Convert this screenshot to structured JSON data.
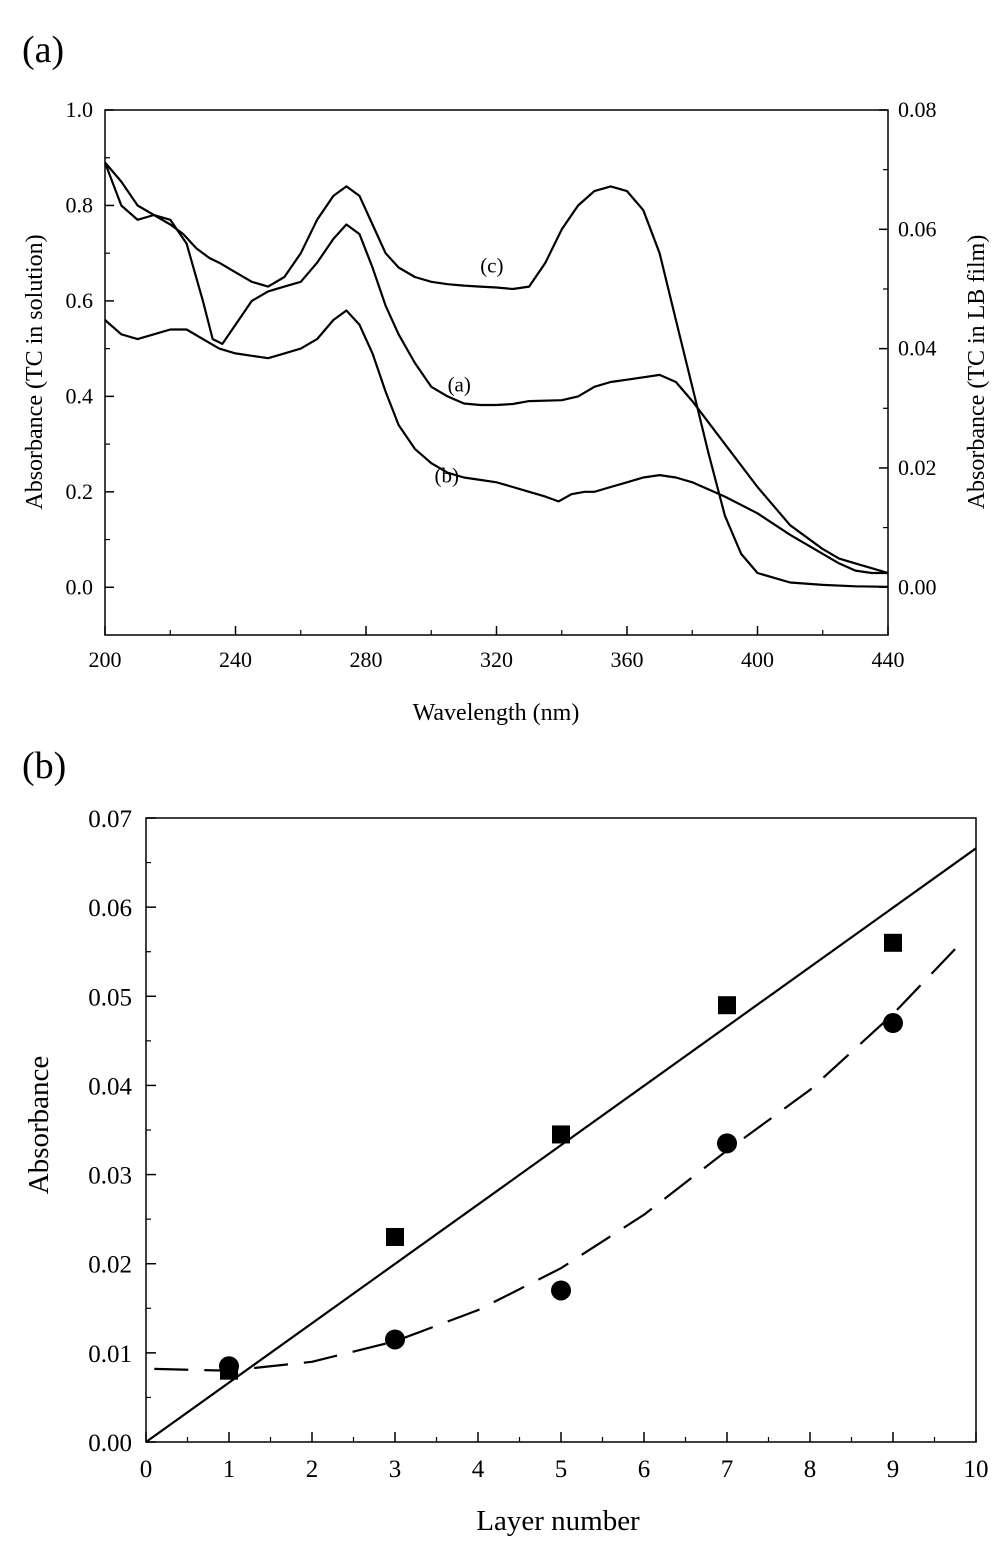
{
  "chart_data": [
    {
      "type": "line",
      "panel_label": "(a)",
      "xlabel": "Wavelength (nm)",
      "ylabel": "Absorbance (TC in solution)",
      "y2label": "Absorbance (TC in LB film)",
      "xlim": [
        200,
        440
      ],
      "ylim": [
        -0.1,
        1.0
      ],
      "y2lim": [
        -0.008,
        0.08
      ],
      "xticks": [
        "200",
        "240",
        "280",
        "320",
        "360",
        "400",
        "440"
      ],
      "yticks": [
        "0.0",
        "0.2",
        "0.4",
        "0.6",
        "0.8",
        "1.0"
      ],
      "y2ticks": [
        "0.00",
        "0.02",
        "0.04",
        "0.06",
        "0.08"
      ],
      "grid": false,
      "series": [
        {
          "name": "(a)",
          "label_pos": [
            305,
            0.41
          ],
          "x": [
            200,
            205,
            210,
            215,
            220,
            225,
            230,
            233,
            236,
            240,
            245,
            250,
            255,
            260,
            265,
            270,
            274,
            278,
            282,
            286,
            290,
            295,
            300,
            305,
            310,
            315,
            320,
            325,
            330,
            340,
            345,
            350,
            355,
            360,
            365,
            370,
            375,
            380,
            390,
            400,
            410,
            420,
            425,
            430,
            435,
            440
          ],
          "y": [
            0.89,
            0.8,
            0.77,
            0.78,
            0.77,
            0.72,
            0.6,
            0.52,
            0.51,
            0.55,
            0.6,
            0.62,
            0.63,
            0.64,
            0.68,
            0.73,
            0.76,
            0.74,
            0.67,
            0.59,
            0.53,
            0.47,
            0.42,
            0.4,
            0.385,
            0.382,
            0.382,
            0.384,
            0.39,
            0.392,
            0.4,
            0.42,
            0.43,
            0.435,
            0.44,
            0.445,
            0.43,
            0.39,
            0.3,
            0.21,
            0.13,
            0.08,
            0.06,
            0.05,
            0.04,
            0.03
          ]
        },
        {
          "name": "(b)",
          "label_pos": [
            301,
            0.22
          ],
          "x": [
            200,
            205,
            210,
            215,
            220,
            225,
            230,
            235,
            240,
            245,
            250,
            255,
            260,
            265,
            270,
            274,
            278,
            282,
            286,
            290,
            295,
            300,
            305,
            310,
            315,
            320,
            325,
            330,
            335,
            339,
            343,
            347,
            350,
            355,
            360,
            365,
            370,
            375,
            380,
            390,
            400,
            410,
            420,
            425,
            430,
            435,
            440
          ],
          "y": [
            0.56,
            0.53,
            0.52,
            0.53,
            0.54,
            0.54,
            0.52,
            0.5,
            0.49,
            0.485,
            0.48,
            0.49,
            0.5,
            0.52,
            0.56,
            0.58,
            0.55,
            0.49,
            0.41,
            0.34,
            0.29,
            0.26,
            0.24,
            0.23,
            0.225,
            0.22,
            0.21,
            0.2,
            0.19,
            0.18,
            0.195,
            0.2,
            0.2,
            0.21,
            0.22,
            0.23,
            0.235,
            0.23,
            0.22,
            0.19,
            0.155,
            0.11,
            0.07,
            0.05,
            0.035,
            0.03,
            0.03
          ]
        },
        {
          "name": "(c)",
          "label_pos": [
            315,
            0.66
          ],
          "x": [
            200,
            205,
            210,
            215,
            220,
            224,
            228,
            232,
            235,
            240,
            245,
            250,
            255,
            260,
            265,
            270,
            274,
            278,
            282,
            286,
            290,
            295,
            300,
            305,
            310,
            315,
            320,
            325,
            330,
            335,
            340,
            345,
            350,
            355,
            360,
            365,
            370,
            375,
            380,
            385,
            390,
            395,
            400,
            410,
            420,
            430,
            440
          ],
          "y": [
            0.89,
            0.85,
            0.8,
            0.78,
            0.76,
            0.74,
            0.71,
            0.69,
            0.68,
            0.66,
            0.64,
            0.63,
            0.65,
            0.7,
            0.77,
            0.82,
            0.84,
            0.82,
            0.76,
            0.7,
            0.67,
            0.65,
            0.64,
            0.635,
            0.632,
            0.63,
            0.628,
            0.625,
            0.63,
            0.68,
            0.75,
            0.8,
            0.83,
            0.84,
            0.83,
            0.79,
            0.7,
            0.56,
            0.42,
            0.28,
            0.15,
            0.07,
            0.03,
            0.01,
            0.005,
            0.002,
            0.001
          ]
        }
      ]
    },
    {
      "type": "scatter",
      "panel_label": "(b)",
      "xlabel": "Layer number",
      "ylabel": "Absorbance",
      "xlim": [
        0,
        10
      ],
      "ylim": [
        0,
        0.07
      ],
      "xticks": [
        "0",
        "1",
        "2",
        "3",
        "4",
        "5",
        "6",
        "7",
        "8",
        "9",
        "10"
      ],
      "yticks": [
        "0.00",
        "0.01",
        "0.02",
        "0.03",
        "0.04",
        "0.05",
        "0.06",
        "0.07"
      ],
      "grid": false,
      "series": [
        {
          "marker": "square",
          "x": [
            1,
            3,
            5,
            7,
            9
          ],
          "y": [
            0.008,
            0.023,
            0.0345,
            0.049,
            0.056
          ]
        },
        {
          "marker": "circle",
          "x": [
            1,
            3,
            5,
            7,
            9
          ],
          "y": [
            0.0085,
            0.0115,
            0.017,
            0.0335,
            0.047
          ]
        }
      ],
      "fits": [
        {
          "style": "solid",
          "x": [
            0,
            10
          ],
          "y": [
            0,
            0.0666
          ]
        },
        {
          "style": "dashed",
          "x": [
            0.1,
            1,
            2,
            3,
            4,
            5,
            6,
            7,
            8,
            9,
            9.8
          ],
          "y": [
            0.0082,
            0.008,
            0.009,
            0.0113,
            0.0148,
            0.0195,
            0.0255,
            0.0327,
            0.0395,
            0.048,
            0.0558
          ]
        }
      ]
    }
  ]
}
